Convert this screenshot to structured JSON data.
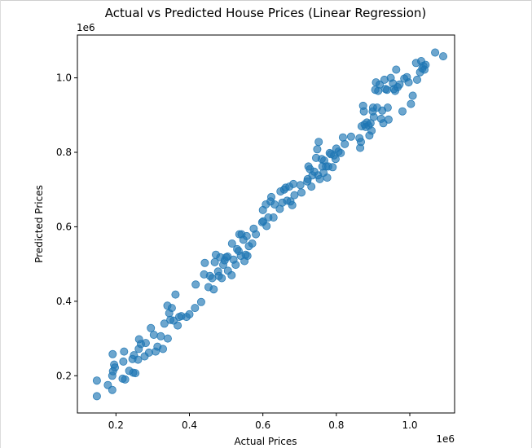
{
  "chart_data": {
    "type": "scatter",
    "title": "Actual vs Predicted House Prices (Linear Regression)",
    "xlabel": "Actual Prices",
    "ylabel": "Predicted Prices",
    "x_offset_label": "1e6",
    "y_offset_label": "1e6",
    "xlim": [
      95000,
      1122000
    ],
    "ylim": [
      100000,
      1115000
    ],
    "xticks": [
      200000,
      400000,
      600000,
      800000,
      1000000
    ],
    "yticks": [
      200000,
      400000,
      600000,
      800000,
      1000000
    ],
    "xtick_labels": [
      "0.2",
      "0.4",
      "0.6",
      "0.8",
      "1.0"
    ],
    "ytick_labels": [
      "0.2",
      "0.4",
      "0.6",
      "0.8",
      "1.0"
    ],
    "grid": false,
    "marker_color": "#1f77b4",
    "marker_alpha": 0.65,
    "points": [
      [
        148000,
        145000
      ],
      [
        148000,
        187000
      ],
      [
        178000,
        175000
      ],
      [
        190000,
        162000
      ],
      [
        190000,
        200000
      ],
      [
        191000,
        258000
      ],
      [
        192000,
        212000
      ],
      [
        195000,
        230000
      ],
      [
        197000,
        222000
      ],
      [
        218000,
        192000
      ],
      [
        220000,
        238000
      ],
      [
        222000,
        265000
      ],
      [
        225000,
        190000
      ],
      [
        236000,
        213000
      ],
      [
        245000,
        245000
      ],
      [
        247000,
        208000
      ],
      [
        249000,
        255000
      ],
      [
        253000,
        207000
      ],
      [
        260000,
        243000
      ],
      [
        262000,
        272000
      ],
      [
        263000,
        298000
      ],
      [
        268000,
        285000
      ],
      [
        278000,
        252000
      ],
      [
        281000,
        288000
      ],
      [
        290000,
        262000
      ],
      [
        295000,
        328000
      ],
      [
        303000,
        310000
      ],
      [
        308000,
        265000
      ],
      [
        313000,
        278000
      ],
      [
        322000,
        306000
      ],
      [
        328000,
        272000
      ],
      [
        332000,
        340000
      ],
      [
        340000,
        388000
      ],
      [
        341000,
        300000
      ],
      [
        345000,
        368000
      ],
      [
        348000,
        350000
      ],
      [
        352000,
        382000
      ],
      [
        357000,
        348000
      ],
      [
        362000,
        418000
      ],
      [
        368000,
        335000
      ],
      [
        372000,
        358000
      ],
      [
        378000,
        360000
      ],
      [
        392000,
        358000
      ],
      [
        400000,
        365000
      ],
      [
        415000,
        382000
      ],
      [
        417000,
        445000
      ],
      [
        432000,
        398000
      ],
      [
        440000,
        472000
      ],
      [
        442000,
        503000
      ],
      [
        452000,
        438000
      ],
      [
        456000,
        468000
      ],
      [
        462000,
        462000
      ],
      [
        466000,
        432000
      ],
      [
        469000,
        505000
      ],
      [
        472000,
        525000
      ],
      [
        478000,
        480000
      ],
      [
        480000,
        468000
      ],
      [
        484000,
        518000
      ],
      [
        488000,
        462000
      ],
      [
        492000,
        498000
      ],
      [
        496000,
        510000
      ],
      [
        500000,
        518000
      ],
      [
        504000,
        520000
      ],
      [
        505000,
        482000
      ],
      [
        515000,
        470000
      ],
      [
        516000,
        555000
      ],
      [
        520000,
        512000
      ],
      [
        526000,
        498000
      ],
      [
        530000,
        540000
      ],
      [
        534000,
        535000
      ],
      [
        536000,
        580000
      ],
      [
        540000,
        522000
      ],
      [
        542000,
        580000
      ],
      [
        547000,
        565000
      ],
      [
        550000,
        508000
      ],
      [
        553000,
        525000
      ],
      [
        556000,
        575000
      ],
      [
        558000,
        522000
      ],
      [
        562000,
        548000
      ],
      [
        571000,
        555000
      ],
      [
        575000,
        595000
      ],
      [
        581000,
        580000
      ],
      [
        598000,
        612000
      ],
      [
        600000,
        645000
      ],
      [
        601000,
        615000
      ],
      [
        608000,
        660000
      ],
      [
        610000,
        602000
      ],
      [
        615000,
        625000
      ],
      [
        621000,
        668000
      ],
      [
        623000,
        680000
      ],
      [
        629000,
        625000
      ],
      [
        632000,
        660000
      ],
      [
        646000,
        648000
      ],
      [
        648000,
        695000
      ],
      [
        653000,
        665000
      ],
      [
        658000,
        700000
      ],
      [
        662000,
        705000
      ],
      [
        666000,
        670000
      ],
      [
        672000,
        708000
      ],
      [
        675000,
        668000
      ],
      [
        680000,
        658000
      ],
      [
        683000,
        715000
      ],
      [
        686000,
        685000
      ],
      [
        702000,
        712000
      ],
      [
        705000,
        692000
      ],
      [
        721000,
        722000
      ],
      [
        722000,
        728000
      ],
      [
        724000,
        762000
      ],
      [
        728000,
        755000
      ],
      [
        732000,
        708000
      ],
      [
        735000,
        738000
      ],
      [
        740000,
        748000
      ],
      [
        745000,
        785000
      ],
      [
        748000,
        808000
      ],
      [
        750000,
        738000
      ],
      [
        752000,
        828000
      ],
      [
        755000,
        728000
      ],
      [
        760000,
        782000
      ],
      [
        762000,
        762000
      ],
      [
        765000,
        745000
      ],
      [
        767000,
        778000
      ],
      [
        772000,
        762000
      ],
      [
        775000,
        732000
      ],
      [
        778000,
        762000
      ],
      [
        782000,
        798000
      ],
      [
        785000,
        795000
      ],
      [
        790000,
        760000
      ],
      [
        794000,
        792000
      ],
      [
        798000,
        782000
      ],
      [
        800000,
        810000
      ],
      [
        806000,
        802000
      ],
      [
        812000,
        798000
      ],
      [
        818000,
        840000
      ],
      [
        823000,
        822000
      ],
      [
        840000,
        842000
      ],
      [
        863000,
        838000
      ],
      [
        865000,
        812000
      ],
      [
        867000,
        828000
      ],
      [
        869000,
        870000
      ],
      [
        873000,
        925000
      ],
      [
        875000,
        910000
      ],
      [
        877000,
        875000
      ],
      [
        880000,
        868000
      ],
      [
        883000,
        880000
      ],
      [
        888000,
        872000
      ],
      [
        890000,
        845000
      ],
      [
        893000,
        878000
      ],
      [
        896000,
        858000
      ],
      [
        899000,
        910000
      ],
      [
        900000,
        920000
      ],
      [
        902000,
        895000
      ],
      [
        906000,
        968000
      ],
      [
        908000,
        988000
      ],
      [
        911000,
        920000
      ],
      [
        914000,
        965000
      ],
      [
        918000,
        982000
      ],
      [
        922000,
        890000
      ],
      [
        925000,
        912000
      ],
      [
        928000,
        878000
      ],
      [
        931000,
        995000
      ],
      [
        934000,
        970000
      ],
      [
        938000,
        968000
      ],
      [
        940000,
        920000
      ],
      [
        942000,
        888000
      ],
      [
        948000,
        1000000
      ],
      [
        954000,
        985000
      ],
      [
        957000,
        970000
      ],
      [
        960000,
        965000
      ],
      [
        963000,
        1022000
      ],
      [
        967000,
        975000
      ],
      [
        972000,
        982000
      ],
      [
        980000,
        910000
      ],
      [
        985000,
        998000
      ],
      [
        992000,
        1002000
      ],
      [
        997000,
        988000
      ],
      [
        1003000,
        930000
      ],
      [
        1008000,
        952000
      ],
      [
        1017000,
        1040000
      ],
      [
        1020000,
        995000
      ],
      [
        1028000,
        1015000
      ],
      [
        1031000,
        1045000
      ],
      [
        1034000,
        1025000
      ],
      [
        1037000,
        1032000
      ],
      [
        1040000,
        1022000
      ],
      [
        1043000,
        1035000
      ],
      [
        1069000,
        1068000
      ],
      [
        1091000,
        1058000
      ]
    ]
  }
}
